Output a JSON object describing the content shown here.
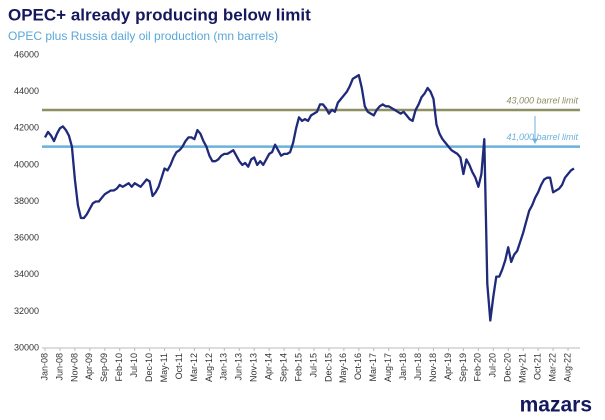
{
  "chart_data": {
    "type": "line",
    "title": "OPEC+ already producing below limit",
    "subtitle": "OPEC plus Russia daily oil production (mn barrels)",
    "categories": [
      "Jan-08",
      null,
      null,
      null,
      null,
      "Jun-08",
      null,
      null,
      null,
      null,
      "Nov-08",
      null,
      null,
      null,
      null,
      "Apr-09",
      null,
      null,
      null,
      null,
      "Sep-09",
      null,
      null,
      null,
      null,
      "Feb-10",
      null,
      null,
      null,
      null,
      "Jul-10",
      null,
      null,
      null,
      null,
      "Dec-10",
      null,
      null,
      null,
      null,
      "May-11",
      null,
      null,
      null,
      null,
      "Oct-11",
      null,
      null,
      null,
      null,
      "Mar-12",
      null,
      null,
      null,
      null,
      "Aug-12",
      null,
      null,
      null,
      null,
      "Jan-13",
      null,
      null,
      null,
      null,
      "Jun-13",
      null,
      null,
      null,
      null,
      "Nov-13",
      null,
      null,
      null,
      null,
      "Apr-14",
      null,
      null,
      null,
      null,
      "Sep-14",
      null,
      null,
      null,
      null,
      "Feb-15",
      null,
      null,
      null,
      null,
      "Jul-15",
      null,
      null,
      null,
      null,
      "Dec-15",
      null,
      null,
      null,
      null,
      "May-16",
      null,
      null,
      null,
      null,
      "Oct-16",
      null,
      null,
      null,
      null,
      "Mar-17",
      null,
      null,
      null,
      null,
      "Aug-17",
      null,
      null,
      null,
      null,
      "Jan-18",
      null,
      null,
      null,
      null,
      "Jun-18",
      null,
      null,
      null,
      null,
      "Nov-18",
      null,
      null,
      null,
      null,
      "Apr-19",
      null,
      null,
      null,
      null,
      "Sep-19",
      null,
      null,
      null,
      null,
      "Feb-20",
      null,
      null,
      null,
      null,
      "Jul-20",
      null,
      null,
      null,
      null,
      "Dec-20",
      null,
      null,
      null,
      null,
      "May-21",
      null,
      null,
      null,
      null,
      "Oct-21",
      null,
      null,
      null,
      null,
      "Mar-22",
      null,
      null,
      null,
      null,
      "Aug-22",
      null,
      null
    ],
    "values": [
      41500,
      41800,
      41600,
      41300,
      41700,
      42000,
      42100,
      41900,
      41600,
      41000,
      39200,
      37800,
      37100,
      37100,
      37300,
      37600,
      37900,
      38000,
      38000,
      38200,
      38400,
      38500,
      38600,
      38600,
      38700,
      38900,
      38800,
      38900,
      39000,
      38800,
      39000,
      38900,
      38800,
      39000,
      39200,
      39100,
      38300,
      38500,
      38800,
      39300,
      39800,
      39700,
      40000,
      40400,
      40700,
      40800,
      41000,
      41300,
      41500,
      41500,
      41400,
      41900,
      41700,
      41300,
      41000,
      40500,
      40200,
      40200,
      40300,
      40500,
      40600,
      40600,
      40700,
      40800,
      40500,
      40200,
      40000,
      40100,
      39900,
      40300,
      40400,
      40000,
      40200,
      40000,
      40300,
      40600,
      40700,
      41100,
      40800,
      40500,
      40600,
      40600,
      40700,
      41200,
      42000,
      42600,
      42400,
      42500,
      42400,
      42700,
      42800,
      42900,
      43300,
      43300,
      43100,
      42800,
      43000,
      42900,
      43400,
      43600,
      43800,
      44000,
      44300,
      44700,
      44800,
      44900,
      44200,
      43200,
      42900,
      42800,
      42700,
      43000,
      43200,
      43300,
      43200,
      43200,
      43100,
      43000,
      42900,
      42800,
      42900,
      42700,
      42500,
      42400,
      43000,
      43300,
      43700,
      43900,
      44200,
      44000,
      43600,
      42200,
      41700,
      41400,
      41200,
      41000,
      40800,
      40700,
      40600,
      40400,
      39500,
      40300,
      40000,
      39600,
      39300,
      38800,
      39500,
      41400,
      33500,
      31500,
      32800,
      33900,
      33900,
      34300,
      34800,
      35500,
      34700,
      35100,
      35300,
      35800,
      36300,
      36900,
      37500,
      37800,
      38200,
      38500,
      38900,
      39200,
      39300,
      39300,
      38500,
      38600,
      38700,
      38900,
      39300,
      39500,
      39700,
      39800
    ],
    "color": "#1f2a7a",
    "ylim": [
      30000,
      46000
    ],
    "yticks": [
      30000,
      32000,
      34000,
      36000,
      38000,
      40000,
      42000,
      44000,
      46000
    ],
    "grid": false,
    "reference_lines": [
      {
        "value": 43000,
        "label": "43,000 barrel limit",
        "color": "#8e8f63"
      },
      {
        "value": 41000,
        "label": "41,000 barrel limit",
        "color": "#6cb0dc"
      }
    ]
  },
  "logo": "mazars"
}
